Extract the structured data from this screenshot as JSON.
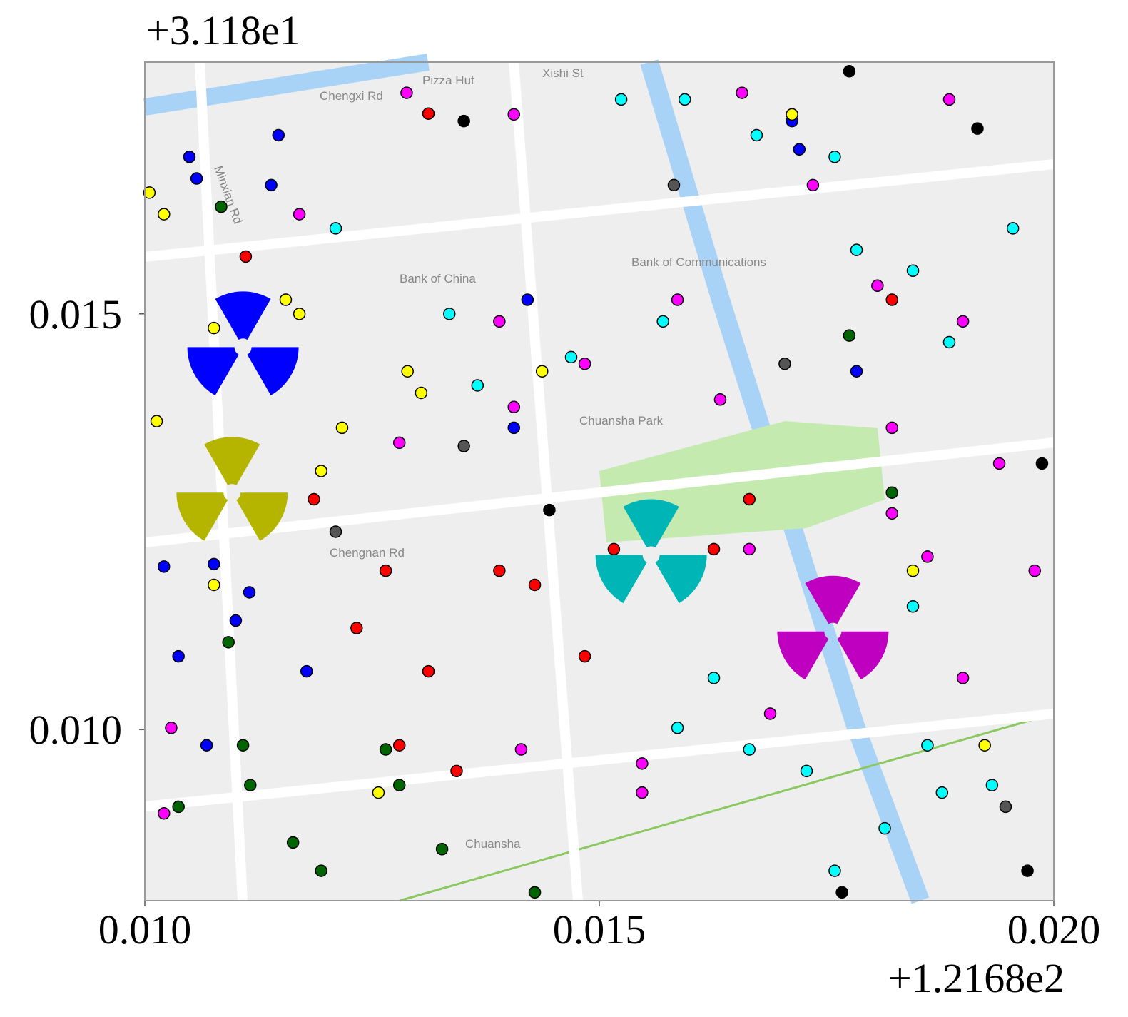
{
  "chart_data": {
    "type": "scatter",
    "x_offset_label": "+1.2168e2",
    "y_offset_label": "+3.118e1",
    "xlim": [
      0.01,
      0.02
    ],
    "ylim": [
      0.00794,
      0.01803
    ],
    "xticks": [
      {
        "value": 0.01,
        "label": "0.010"
      },
      {
        "value": 0.015,
        "label": "0.015"
      },
      {
        "value": 0.02,
        "label": "0.020"
      }
    ],
    "yticks": [
      {
        "value": 0.01,
        "label": "0.010"
      },
      {
        "value": 0.015,
        "label": "0.015"
      }
    ],
    "map_labels": [
      "Pizza Hut",
      "Xishi St",
      "Chengxi Rd",
      "Bank of China",
      "Bank of Communications",
      "Chuansha Park",
      "Chengnan Rd",
      "Chuansha",
      "Minxian Rd"
    ],
    "series": [
      {
        "color": "#0000ff",
        "x": [
          0.01049,
          0.01057,
          0.01147,
          0.01139,
          0.01021,
          0.01076,
          0.01115,
          0.01037,
          0.011,
          0.01068,
          0.01421,
          0.01406,
          0.01712,
          0.0172,
          0.01178,
          0.01783
        ],
        "values": [
          0.01689,
          0.01663,
          0.01715,
          0.01655,
          0.01196,
          0.01199,
          0.01165,
          0.01088,
          0.01131,
          0.00981,
          0.01517,
          0.01363,
          0.01732,
          0.01698,
          0.0107,
          0.01431
        ]
      },
      {
        "color": "#ffff00",
        "x": [
          0.01005,
          0.01021,
          0.01155,
          0.0117,
          0.01076,
          0.01013,
          0.01304,
          0.01289,
          0.01217,
          0.01194,
          0.01076,
          0.01437,
          0.01712,
          0.01845,
          0.01924,
          0.01257
        ],
        "values": [
          0.01646,
          0.0162,
          0.01517,
          0.015,
          0.01483,
          0.01371,
          0.01405,
          0.01431,
          0.01363,
          0.01311,
          0.01174,
          0.01431,
          0.0174,
          0.01191,
          0.00981,
          0.00924
        ]
      },
      {
        "color": "#ff0000",
        "x": [
          0.01312,
          0.01265,
          0.01233,
          0.01312,
          0.01343,
          0.0139,
          0.01429,
          0.01516,
          0.01484,
          0.01626,
          0.01665,
          0.0128,
          0.01186,
          0.01111,
          0.01822
        ],
        "values": [
          0.01741,
          0.01191,
          0.01122,
          0.0107,
          0.0095,
          0.01191,
          0.01174,
          0.01217,
          0.01088,
          0.01217,
          0.01277,
          0.00981,
          0.01277,
          0.01569,
          0.01517
        ]
      },
      {
        "color": "#006400",
        "x": [
          0.01092,
          0.01108,
          0.01116,
          0.01163,
          0.01194,
          0.01265,
          0.0128,
          0.01037,
          0.01327,
          0.01429,
          0.01084,
          0.01775,
          0.01822
        ],
        "values": [
          0.01105,
          0.00981,
          0.00933,
          0.00864,
          0.0083,
          0.00976,
          0.00933,
          0.00907,
          0.00856,
          0.00804,
          0.01629,
          0.01474,
          0.01285
        ]
      },
      {
        "color": "#ff00ff",
        "x": [
          0.0117,
          0.01288,
          0.01406,
          0.0139,
          0.01406,
          0.0128,
          0.01484,
          0.01586,
          0.01657,
          0.01735,
          0.01806,
          0.019,
          0.01822,
          0.0194,
          0.01861,
          0.01665,
          0.01547,
          0.01547,
          0.01414,
          0.01029,
          0.01021,
          0.01688,
          0.019,
          0.01979,
          0.01885,
          0.01633,
          0.01822
        ],
        "values": [
          0.0162,
          0.01766,
          0.0174,
          0.01491,
          0.01388,
          0.01345,
          0.0144,
          0.01517,
          0.01766,
          0.01655,
          0.01534,
          0.01491,
          0.01363,
          0.0132,
          0.01208,
          0.01217,
          0.00924,
          0.00959,
          0.00976,
          0.01002,
          0.00899,
          0.01019,
          0.01062,
          0.01191,
          0.01758,
          0.01397,
          0.0126
        ]
      },
      {
        "color": "#00ffff",
        "x": [
          0.0121,
          0.01335,
          0.01366,
          0.01469,
          0.01524,
          0.01594,
          0.01673,
          0.01759,
          0.01783,
          0.01845,
          0.01955,
          0.0157,
          0.01626,
          0.01665,
          0.01728,
          0.01814,
          0.01877,
          0.01759,
          0.01861,
          0.01586,
          0.01845,
          0.01932,
          0.01885
        ],
        "values": [
          0.01603,
          0.015,
          0.01414,
          0.01448,
          0.01758,
          0.01758,
          0.01715,
          0.01689,
          0.01577,
          0.01552,
          0.01603,
          0.01491,
          0.01062,
          0.00976,
          0.0095,
          0.00881,
          0.00924,
          0.0083,
          0.00981,
          0.01002,
          0.01148,
          0.00933,
          0.01466
        ]
      },
      {
        "color": "#000000",
        "x": [
          0.01775,
          0.01916,
          0.01971,
          0.01987,
          0.01445,
          0.01351,
          0.01767
        ],
        "values": [
          0.01792,
          0.01723,
          0.0083,
          0.0132,
          0.01264,
          0.01732,
          0.00804
        ]
      },
      {
        "color": "#555555",
        "x": [
          0.0121,
          0.01582,
          0.01704,
          0.01351,
          0.01947
        ],
        "values": [
          0.01238,
          0.01655,
          0.0144,
          0.01341,
          0.00907
        ]
      }
    ],
    "markers": [
      {
        "x": 0.01108,
        "y": 0.0146,
        "color": "#0000ff"
      },
      {
        "x": 0.01096,
        "y": 0.01285,
        "color": "#b5b500"
      },
      {
        "x": 0.01557,
        "y": 0.0121,
        "color": "#00b5b5"
      },
      {
        "x": 0.01757,
        "y": 0.01118,
        "color": "#c000c0"
      }
    ]
  }
}
